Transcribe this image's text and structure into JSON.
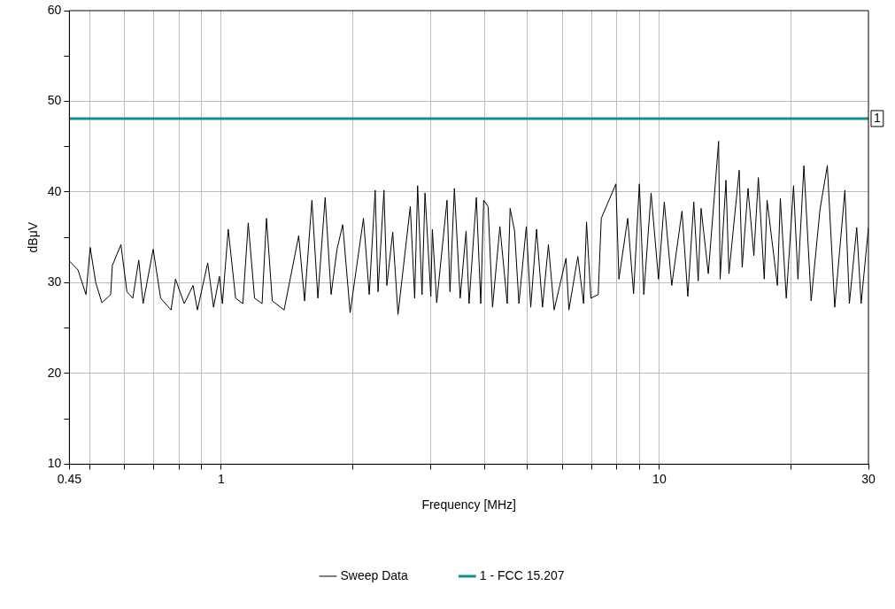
{
  "chart_data": {
    "type": "line",
    "xlabel": "Frequency [MHz]",
    "ylabel": "dBμV",
    "log": "x",
    "grid": true,
    "legend": "bottom",
    "marker": "none",
    "line_style": "solid",
    "xlim": [
      0.45,
      30
    ],
    "xticks": [
      0.45,
      {
        "value": 0.5,
        "label": null
      },
      {
        "value": 0.6,
        "label": null
      },
      {
        "value": 0.7,
        "label": null
      },
      {
        "value": 0.8,
        "label": null
      },
      {
        "value": 0.9,
        "label": null
      },
      1,
      {
        "value": 2,
        "label": null
      },
      {
        "value": 3,
        "label": null
      },
      {
        "value": 4,
        "label": null
      },
      {
        "value": 5,
        "label": null
      },
      {
        "value": 6,
        "label": null
      },
      {
        "value": 7,
        "label": null
      },
      {
        "value": 8,
        "label": null
      },
      {
        "value": 9,
        "label": null
      },
      10,
      {
        "value": 20,
        "label": null
      },
      30
    ],
    "ylim": [
      10,
      60
    ],
    "yticks": [
      10,
      {
        "value": 15,
        "label": null
      },
      20,
      {
        "value": 25,
        "label": null
      },
      30,
      {
        "value": 35,
        "label": null
      },
      40,
      {
        "value": 45,
        "label": null
      },
      50,
      {
        "value": 55,
        "label": null
      },
      60
    ],
    "annotations": [
      {
        "text": "1",
        "x": 30,
        "y": 48.1
      }
    ],
    "series": [
      {
        "name": "Sweep Data",
        "color": "#000000",
        "x": [
          0.45,
          0.471,
          0.491,
          0.502,
          0.517,
          0.534,
          0.559,
          0.564,
          0.59,
          0.609,
          0.628,
          0.648,
          0.663,
          0.699,
          0.727,
          0.768,
          0.786,
          0.823,
          0.862,
          0.882,
          0.931,
          0.96,
          0.99,
          1.006,
          1.037,
          1.078,
          1.12,
          1.152,
          1.191,
          1.239,
          1.268,
          1.307,
          1.391,
          1.502,
          1.549,
          1.61,
          1.661,
          1.726,
          1.781,
          1.837,
          1.893,
          1.968,
          2.111,
          2.176,
          2.245,
          2.279,
          2.351,
          2.387,
          2.462,
          2.531,
          2.7,
          2.763,
          2.806,
          2.872,
          2.917,
          3.008,
          3.032,
          3.102,
          3.275,
          3.326,
          3.404,
          3.51,
          3.62,
          3.677,
          3.821,
          3.911,
          3.971,
          4.064,
          4.16,
          4.324,
          4.494,
          4.563,
          4.671,
          4.779,
          4.968,
          5.085,
          5.243,
          5.409,
          5.58,
          5.751,
          6.12,
          6.215,
          6.512,
          6.714,
          6.818,
          6.975,
          7.25,
          7.367,
          7.956,
          8.082,
          8.465,
          8.73,
          9.0,
          9.212,
          9.572,
          9.95,
          10.26,
          10.67,
          11.26,
          11.61,
          11.98,
          12.26,
          12.45,
          12.93,
          13.65,
          13.76,
          14.19,
          14.41,
          15.21,
          15.45,
          15.93,
          16.43,
          16.82,
          17.35,
          17.61,
          18.59,
          18.88,
          19.48,
          20.24,
          20.71,
          21.37,
          22.2,
          23.26,
          24.17,
          25.13,
          26.51,
          27.14,
          28.21,
          28.87,
          30
        ],
        "values": [
          32.4,
          31.4,
          28.7,
          33.9,
          30.0,
          27.8,
          28.7,
          31.9,
          34.2,
          29.0,
          28.3,
          32.5,
          27.7,
          33.7,
          28.3,
          27.0,
          30.4,
          27.7,
          29.7,
          27.0,
          32.2,
          27.3,
          30.7,
          27.7,
          35.9,
          28.3,
          27.7,
          36.6,
          28.3,
          27.7,
          37.1,
          28.0,
          27.0,
          35.2,
          28.0,
          39.1,
          28.3,
          39.4,
          28.7,
          33.7,
          36.4,
          26.7,
          37.1,
          28.7,
          40.2,
          29.0,
          40.2,
          29.7,
          35.6,
          26.5,
          38.4,
          28.3,
          40.7,
          28.7,
          39.9,
          28.5,
          35.9,
          27.8,
          39.1,
          29.0,
          40.4,
          28.3,
          35.7,
          27.7,
          39.4,
          27.7,
          39.1,
          38.4,
          27.3,
          36.2,
          27.7,
          38.2,
          35.7,
          27.7,
          36.2,
          27.3,
          35.9,
          27.3,
          34.2,
          27.0,
          32.7,
          27.0,
          32.9,
          27.7,
          36.7,
          28.3,
          28.7,
          37.1,
          40.9,
          30.4,
          37.1,
          28.8,
          40.9,
          28.7,
          39.9,
          30.4,
          38.9,
          29.7,
          37.9,
          28.5,
          38.9,
          30.2,
          38.2,
          31.0,
          45.6,
          30.4,
          41.3,
          31.0,
          42.4,
          31.7,
          40.4,
          33.0,
          41.6,
          30.4,
          39.1,
          29.7,
          39.3,
          28.3,
          40.7,
          30.4,
          42.9,
          28.0,
          38.1,
          42.9,
          27.3,
          40.2,
          27.7,
          36.1,
          27.7,
          36.1
        ]
      },
      {
        "name": "1 - FCC 15.207",
        "color": "#1b8b8b",
        "x": [
          0.45,
          30
        ],
        "values": [
          48.1,
          48.1
        ]
      }
    ]
  }
}
